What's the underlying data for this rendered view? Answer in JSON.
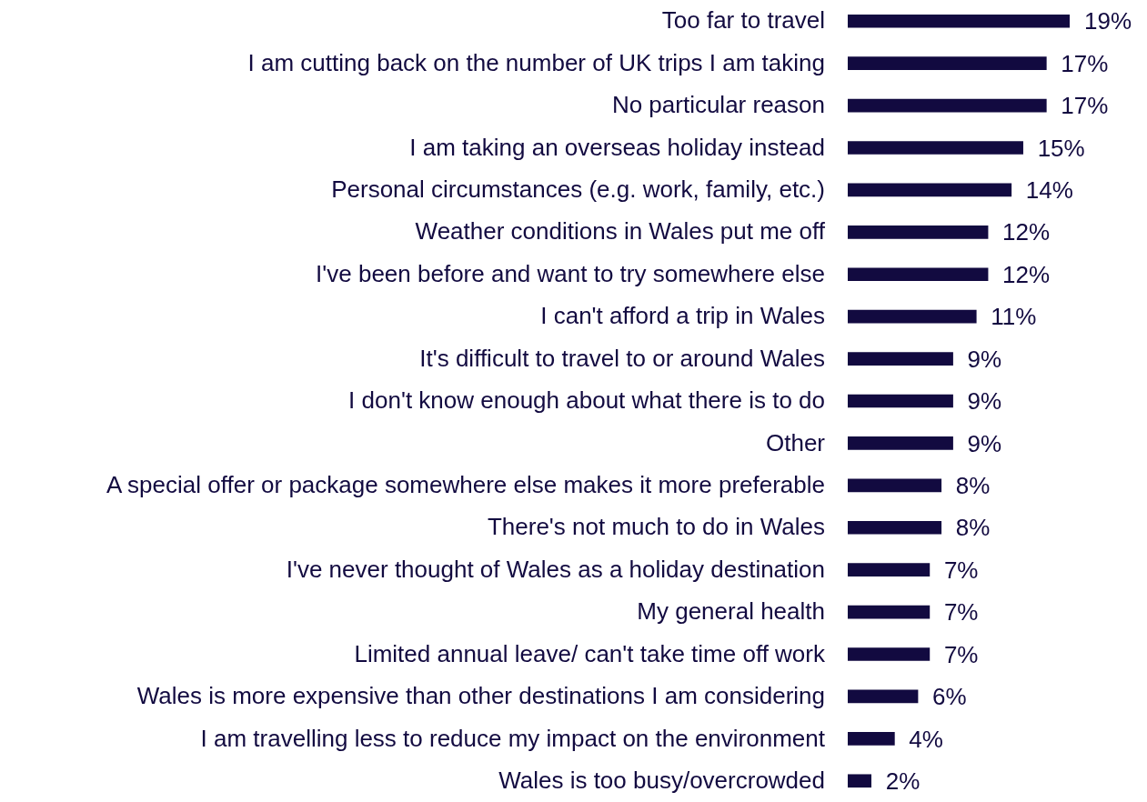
{
  "chart_data": {
    "type": "bar",
    "orientation": "horizontal",
    "categories": [
      "Too far to travel",
      "I am cutting back on the number of UK trips I am taking",
      "No particular reason",
      "I am taking an overseas holiday instead",
      "Personal circumstances (e.g. work, family, etc.)",
      "Weather conditions in Wales put me off",
      "I've been before and want to try somewhere else",
      "I can't afford a trip in Wales",
      "It's difficult to travel to or around Wales",
      "I don't know enough about what there is to do",
      "Other",
      "A special offer or package somewhere else makes it more preferable",
      "There's not much to do in Wales",
      "I've never thought of Wales as a holiday destination",
      "My general health",
      "Limited annual leave/ can't take time off work",
      "Wales is more expensive than other destinations I am considering",
      "I am travelling less to reduce my impact on the environment",
      "Wales is too busy/overcrowded"
    ],
    "values": [
      19,
      17,
      17,
      15,
      14,
      12,
      12,
      11,
      9,
      9,
      9,
      8,
      8,
      7,
      7,
      7,
      6,
      4,
      2
    ],
    "value_labels": [
      "19%",
      "17%",
      "17%",
      "15%",
      "14%",
      "12%",
      "12%",
      "11%",
      "9%",
      "9%",
      "9%",
      "8%",
      "8%",
      "7%",
      "7%",
      "7%",
      "6%",
      "4%",
      "2%"
    ],
    "color": "#120a40"
  }
}
